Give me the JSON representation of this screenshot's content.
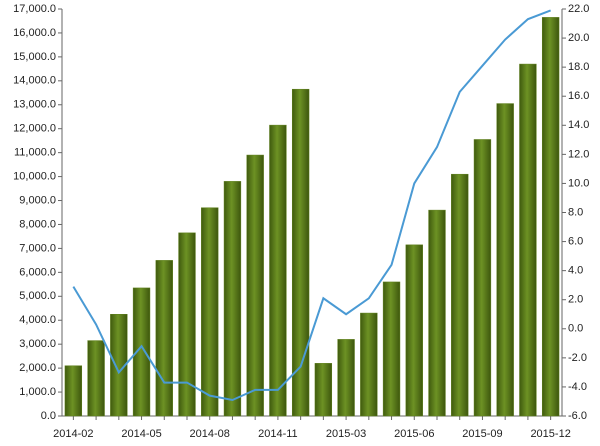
{
  "chart_data": {
    "type": "bar_line",
    "categories": [
      "2014-02",
      null,
      null,
      "2014-05",
      null,
      null,
      "2014-08",
      null,
      null,
      "2014-11",
      null,
      null,
      "2015-03",
      null,
      null,
      "2015-06",
      null,
      null,
      "2015-09",
      null,
      null,
      "2015-12"
    ],
    "series": [
      {
        "type": "bar",
        "color": "#5e7f1c",
        "values": [
          2100,
          3150,
          4250,
          5350,
          6500,
          7650,
          8700,
          9800,
          10900,
          12150,
          13650,
          2200,
          3200,
          4300,
          5600,
          7150,
          8600,
          10100,
          11550,
          13050,
          14700,
          16650
        ]
      },
      {
        "type": "line",
        "axis": "y2",
        "color": "#4a9ad4",
        "values": [
          2.9,
          0.3,
          -3.0,
          -1.2,
          -3.7,
          -3.7,
          -4.6,
          -4.9,
          -4.2,
          -4.2,
          -2.6,
          2.1,
          1.0,
          2.1,
          4.4,
          10.0,
          12.5,
          16.3,
          18.1,
          19.9,
          21.3,
          21.9
        ]
      }
    ],
    "ylim": [
      0,
      17000
    ],
    "yticks": [
      {
        "value": 0,
        "label": "0.0"
      },
      {
        "value": 1000,
        "label": "1,000.0"
      },
      {
        "value": 2000,
        "label": "2,000.0"
      },
      {
        "value": 3000,
        "label": "3,000.0"
      },
      {
        "value": 4000,
        "label": "4,000.0"
      },
      {
        "value": 5000,
        "label": "5,000.0"
      },
      {
        "value": 6000,
        "label": "6,000.0"
      },
      {
        "value": 7000,
        "label": "7,000.0"
      },
      {
        "value": 8000,
        "label": "8,000.0"
      },
      {
        "value": 9000,
        "label": "9,000.0"
      },
      {
        "value": 10000,
        "label": "10,000.0"
      },
      {
        "value": 11000,
        "label": "11,000.0"
      },
      {
        "value": 12000,
        "label": "12,000.0"
      },
      {
        "value": 13000,
        "label": "13,000.0"
      },
      {
        "value": 14000,
        "label": "14,000.0"
      },
      {
        "value": 15000,
        "label": "15,000.0"
      },
      {
        "value": 16000,
        "label": "16,000.0"
      },
      {
        "value": 17000,
        "label": "17,000.0"
      }
    ],
    "y2lim": [
      -6,
      22
    ],
    "y2ticks": [
      {
        "value": -6,
        "label": "-6.0"
      },
      {
        "value": -4,
        "label": "-4.0"
      },
      {
        "value": -2,
        "label": "-2.0"
      },
      {
        "value": 0,
        "label": "0.0"
      },
      {
        "value": 2,
        "label": "2.0"
      },
      {
        "value": 4,
        "label": "4.0"
      },
      {
        "value": 6,
        "label": "6.0"
      },
      {
        "value": 8,
        "label": "8.0"
      },
      {
        "value": 10,
        "label": "10.0"
      },
      {
        "value": 12,
        "label": "12.0"
      },
      {
        "value": 14,
        "label": "14.0"
      },
      {
        "value": 16,
        "label": "16.0"
      },
      {
        "value": 18,
        "label": "18.0"
      },
      {
        "value": 20,
        "label": "20.0"
      },
      {
        "value": 22,
        "label": "22.0"
      }
    ]
  }
}
